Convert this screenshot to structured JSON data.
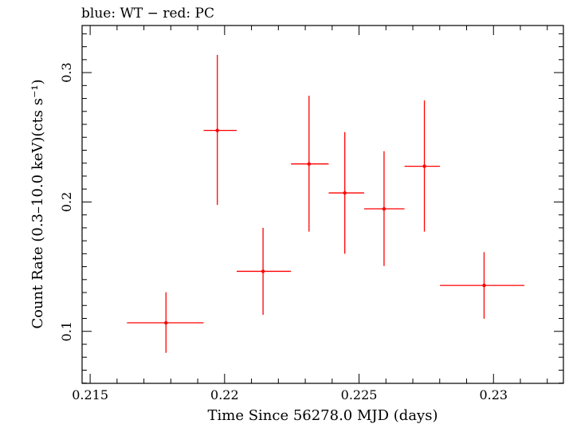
{
  "chart_data": {
    "type": "scatter",
    "title": "blue: WT − red: PC",
    "xlabel": "Time Since 56278.0 MJD (days)",
    "ylabel": "Count Rate (0.3–10.0 keV)(cts s⁻¹)",
    "xlim": [
      0.2147,
      0.2326
    ],
    "ylim": [
      0.0598,
      0.3364
    ],
    "x_ticks": [
      0.215,
      0.22,
      0.225,
      0.23
    ],
    "x_tick_labels": [
      "0.215",
      "0.22",
      "0.225",
      "0.23"
    ],
    "y_ticks": [
      0.1,
      0.2,
      0.3
    ],
    "y_tick_labels": [
      "0.1",
      "0.2",
      "0.3"
    ],
    "grid": false,
    "series": [
      {
        "name": "PC",
        "color": "#ff0000",
        "points": [
          {
            "x": 0.21782,
            "xlo": 0.21637,
            "xhi": 0.21922,
            "y": 0.1066,
            "ylo": 0.0834,
            "yhi": 0.1302
          },
          {
            "x": 0.21973,
            "xlo": 0.21922,
            "xhi": 0.22045,
            "y": 0.2553,
            "ylo": 0.1977,
            "yhi": 0.3137
          },
          {
            "x": 0.22143,
            "xlo": 0.22045,
            "xhi": 0.22247,
            "y": 0.1464,
            "ylo": 0.1128,
            "yhi": 0.18
          },
          {
            "x": 0.22314,
            "xlo": 0.22247,
            "xhi": 0.22387,
            "y": 0.2294,
            "ylo": 0.1771,
            "yhi": 0.2821
          },
          {
            "x": 0.22447,
            "xlo": 0.22387,
            "xhi": 0.22519,
            "y": 0.207,
            "ylo": 0.16,
            "yhi": 0.254
          },
          {
            "x": 0.22593,
            "xlo": 0.22519,
            "xhi": 0.22669,
            "y": 0.1947,
            "ylo": 0.1505,
            "yhi": 0.2392
          },
          {
            "x": 0.22743,
            "xlo": 0.22669,
            "xhi": 0.22801,
            "y": 0.2276,
            "ylo": 0.1771,
            "yhi": 0.2785
          },
          {
            "x": 0.22965,
            "xlo": 0.22801,
            "xhi": 0.23115,
            "y": 0.1355,
            "ylo": 0.1098,
            "yhi": 0.1612
          }
        ]
      }
    ]
  }
}
